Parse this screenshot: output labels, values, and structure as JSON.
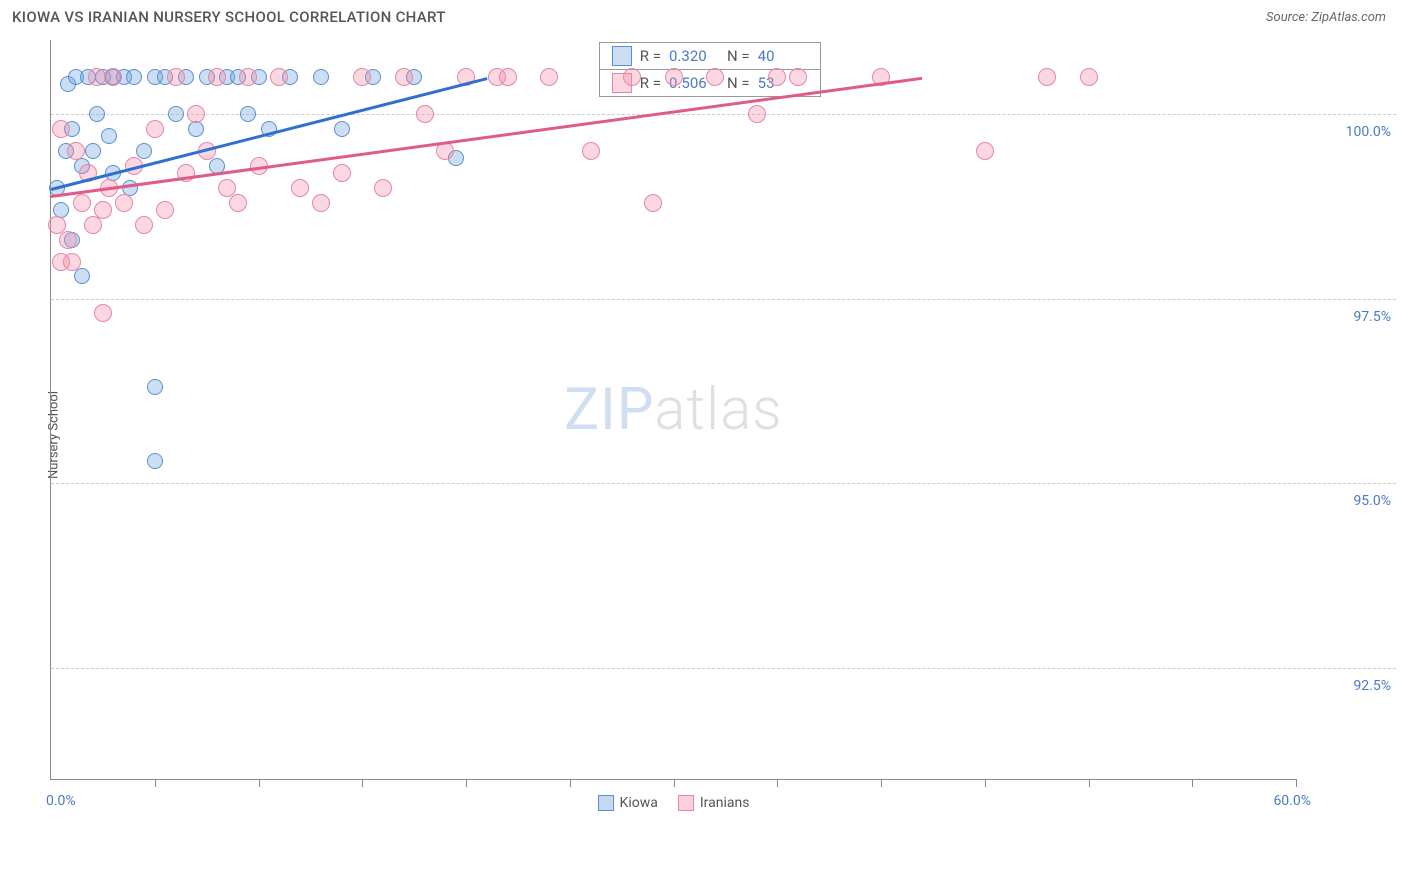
{
  "title": "KIOWA VS IRANIAN NURSERY SCHOOL CORRELATION CHART",
  "source": "Source: ZipAtlas.com",
  "ylabel": "Nursery School",
  "watermark_left": "ZIP",
  "watermark_right": "atlas",
  "chart": {
    "type": "scatter",
    "xlim": [
      0,
      60
    ],
    "ylim": [
      91,
      101
    ],
    "x_start_label": "0.0%",
    "x_end_label": "60.0%",
    "ytick_positions": [
      92.5,
      95.0,
      97.5,
      100.0
    ],
    "ytick_labels": [
      "92.5%",
      "95.0%",
      "97.5%",
      "100.0%"
    ],
    "xtick_positions": [
      5,
      10,
      15,
      20,
      25,
      30,
      35,
      40,
      45,
      50,
      55,
      60
    ],
    "background_color": "#ffffff",
    "grid_color": "#cccccc",
    "series": [
      {
        "name": "Kiowa",
        "color_fill": "rgba(108,160,220,0.35)",
        "color_stroke": "#5a8fd0",
        "marker_radius": 8,
        "R": "0.320",
        "N": "40",
        "trendline": {
          "x1": 0,
          "y1": 99.0,
          "x2": 21,
          "y2": 100.5,
          "color": "#2e6fd0"
        },
        "points": [
          [
            0.3,
            99.0
          ],
          [
            0.5,
            98.7
          ],
          [
            0.8,
            100.4
          ],
          [
            1.0,
            99.8
          ],
          [
            1.2,
            100.5
          ],
          [
            1.5,
            99.3
          ],
          [
            1.5,
            97.8
          ],
          [
            1.8,
            100.5
          ],
          [
            2.0,
            99.5
          ],
          [
            2.2,
            100.0
          ],
          [
            2.5,
            100.5
          ],
          [
            2.8,
            99.7
          ],
          [
            3.0,
            100.5
          ],
          [
            3.0,
            99.2
          ],
          [
            3.5,
            100.5
          ],
          [
            3.8,
            99.0
          ],
          [
            4.0,
            100.5
          ],
          [
            4.5,
            99.5
          ],
          [
            5.0,
            100.5
          ],
          [
            5.0,
            96.3
          ],
          [
            5.0,
            95.3
          ],
          [
            5.5,
            100.5
          ],
          [
            6.0,
            100.0
          ],
          [
            6.5,
            100.5
          ],
          [
            7.0,
            99.8
          ],
          [
            7.5,
            100.5
          ],
          [
            8.0,
            99.3
          ],
          [
            8.5,
            100.5
          ],
          [
            9.0,
            100.5
          ],
          [
            9.5,
            100.0
          ],
          [
            10.0,
            100.5
          ],
          [
            10.5,
            99.8
          ],
          [
            11.5,
            100.5
          ],
          [
            13.0,
            100.5
          ],
          [
            14.0,
            99.8
          ],
          [
            15.5,
            100.5
          ],
          [
            17.5,
            100.5
          ],
          [
            19.5,
            99.4
          ],
          [
            1.0,
            98.3
          ],
          [
            0.7,
            99.5
          ]
        ]
      },
      {
        "name": "Iranians",
        "color_fill": "rgba(240,140,170,0.35)",
        "color_stroke": "#e787a5",
        "marker_radius": 9,
        "R": "0.506",
        "N": "53",
        "trendline": {
          "x1": 0,
          "y1": 98.9,
          "x2": 42,
          "y2": 100.5,
          "color": "#e05a8a"
        },
        "points": [
          [
            0.3,
            98.5
          ],
          [
            0.5,
            99.8
          ],
          [
            0.8,
            98.3
          ],
          [
            1.0,
            98.0
          ],
          [
            1.2,
            99.5
          ],
          [
            1.5,
            98.8
          ],
          [
            1.8,
            99.2
          ],
          [
            2.0,
            98.5
          ],
          [
            2.2,
            100.5
          ],
          [
            2.5,
            98.7
          ],
          [
            2.5,
            97.3
          ],
          [
            2.8,
            99.0
          ],
          [
            3.0,
            100.5
          ],
          [
            3.5,
            98.8
          ],
          [
            4.0,
            99.3
          ],
          [
            4.5,
            98.5
          ],
          [
            5.0,
            99.8
          ],
          [
            5.5,
            98.7
          ],
          [
            6.0,
            100.5
          ],
          [
            6.5,
            99.2
          ],
          [
            7.0,
            100.0
          ],
          [
            7.5,
            99.5
          ],
          [
            8.0,
            100.5
          ],
          [
            8.5,
            99.0
          ],
          [
            9.0,
            98.8
          ],
          [
            9.5,
            100.5
          ],
          [
            10.0,
            99.3
          ],
          [
            11.0,
            100.5
          ],
          [
            12.0,
            99.0
          ],
          [
            13.0,
            98.8
          ],
          [
            14.0,
            99.2
          ],
          [
            15.0,
            100.5
          ],
          [
            16.0,
            99.0
          ],
          [
            17.0,
            100.5
          ],
          [
            18.0,
            100.0
          ],
          [
            19.0,
            99.5
          ],
          [
            20.0,
            100.5
          ],
          [
            21.5,
            100.5
          ],
          [
            22.0,
            100.5
          ],
          [
            24.0,
            100.5
          ],
          [
            26.0,
            99.5
          ],
          [
            28.0,
            100.5
          ],
          [
            29.0,
            98.8
          ],
          [
            30.0,
            100.5
          ],
          [
            32.0,
            100.5
          ],
          [
            34.0,
            100.0
          ],
          [
            35.0,
            100.5
          ],
          [
            36.0,
            100.5
          ],
          [
            40.0,
            100.5
          ],
          [
            48.0,
            100.5
          ],
          [
            50.0,
            100.5
          ],
          [
            45.0,
            99.5
          ],
          [
            0.5,
            98.0
          ]
        ]
      }
    ],
    "legend_bottom": [
      {
        "label": "Kiowa",
        "fill": "rgba(108,160,220,0.4)",
        "stroke": "#5a8fd0"
      },
      {
        "label": "Iranians",
        "fill": "rgba(240,140,170,0.4)",
        "stroke": "#e787a5"
      }
    ]
  }
}
